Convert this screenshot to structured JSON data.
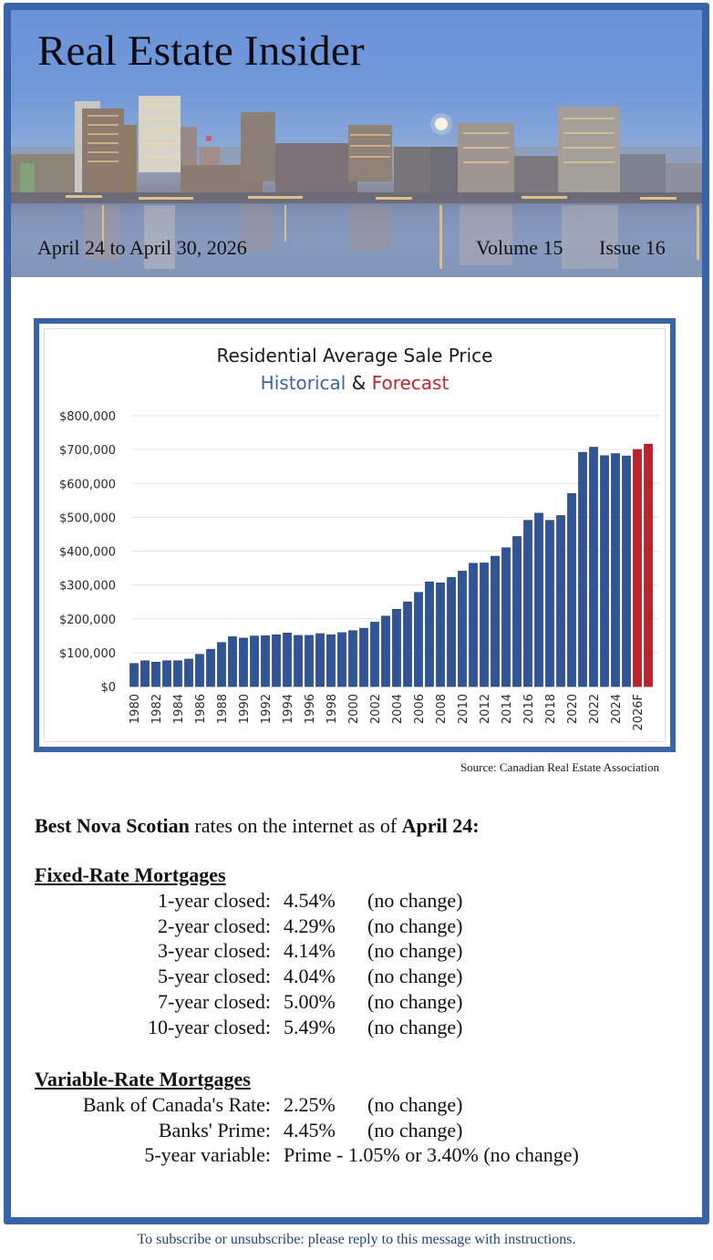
{
  "header": {
    "title": "Real Estate Insider",
    "date_range": "April 24 to April 30, 2026",
    "volume": "Volume 15",
    "issue": "Issue 16"
  },
  "colors": {
    "frame_blue": "#3a62a8",
    "historical_bar": "#2f5597",
    "forecast_bar": "#c0202a",
    "footer_text": "#24427a"
  },
  "chart_data": {
    "type": "bar",
    "title": "Residential Average Sale Price",
    "subtitle_parts": [
      "Historical",
      "&",
      "Forecast"
    ],
    "xlabel": "",
    "ylabel": "",
    "ylim": [
      0,
      800000
    ],
    "y_ticks": [
      0,
      100000,
      200000,
      300000,
      400000,
      500000,
      600000,
      700000,
      800000
    ],
    "y_tick_labels": [
      "$0",
      "$100,000",
      "$200,000",
      "$300,000",
      "$400,000",
      "$500,000",
      "$600,000",
      "$700,000",
      "$800,000"
    ],
    "grid": true,
    "legend": "none",
    "x_tick_labels": [
      "1980",
      "1982",
      "1984",
      "1986",
      "1988",
      "1990",
      "1992",
      "1994",
      "1996",
      "1998",
      "2000",
      "2002",
      "2004",
      "2006",
      "2008",
      "2010",
      "2012",
      "2014",
      "2016",
      "2018",
      "2020",
      "2022",
      "2024",
      "2026F"
    ],
    "x_tick_every": 2,
    "series": [
      {
        "name": "Historical",
        "color": "#2f5597",
        "values": [
          68000,
          76000,
          72000,
          76000,
          76000,
          81000,
          95000,
          110000,
          130000,
          147000,
          143000,
          149000,
          150000,
          153000,
          158000,
          151000,
          151000,
          156000,
          153000,
          159000,
          165000,
          172000,
          190000,
          208000,
          228000,
          250000,
          278000,
          309000,
          306000,
          322000,
          341000,
          364000,
          365000,
          385000,
          410000,
          443000,
          491000,
          512000,
          491000,
          505000,
          570000,
          692000,
          707000,
          682000,
          688000,
          681000
        ]
      },
      {
        "name": "Forecast",
        "color": "#c0202a",
        "values": [
          700000,
          716000
        ]
      }
    ]
  },
  "source": "Source: Canadian Real Estate Association",
  "rates": {
    "intro_bold_1": "Best Nova Scotian",
    "intro_text": " rates on the internet as of ",
    "intro_bold_2": "April 24:",
    "fixed": {
      "heading": "Fixed-Rate Mortgages",
      "rows": [
        {
          "label": "1-year closed:",
          "value": "4.54%",
          "change": "(no change)"
        },
        {
          "label": "2-year closed:",
          "value": "4.29%",
          "change": "(no change)"
        },
        {
          "label": "3-year closed:",
          "value": "4.14%",
          "change": "(no change)"
        },
        {
          "label": "5-year closed:",
          "value": "4.04%",
          "change": "(no change)"
        },
        {
          "label": "7-year closed:",
          "value": "5.00%",
          "change": "(no change)"
        },
        {
          "label": "10-year closed:",
          "value": "5.49%",
          "change": "(no change)"
        }
      ]
    },
    "variable": {
      "heading": "Variable-Rate Mortgages",
      "rows": [
        {
          "label": "Bank of Canada's Rate:",
          "value": "2.25%",
          "change": "(no change)"
        },
        {
          "label": "Banks' Prime:",
          "value": "4.45%",
          "change": "(no change)"
        },
        {
          "label": "5-year variable:",
          "value": "Prime - 1.05% or 3.40% (no change)"
        }
      ]
    }
  },
  "footer": "To subscribe or unsubscribe: please reply to this message with instructions."
}
